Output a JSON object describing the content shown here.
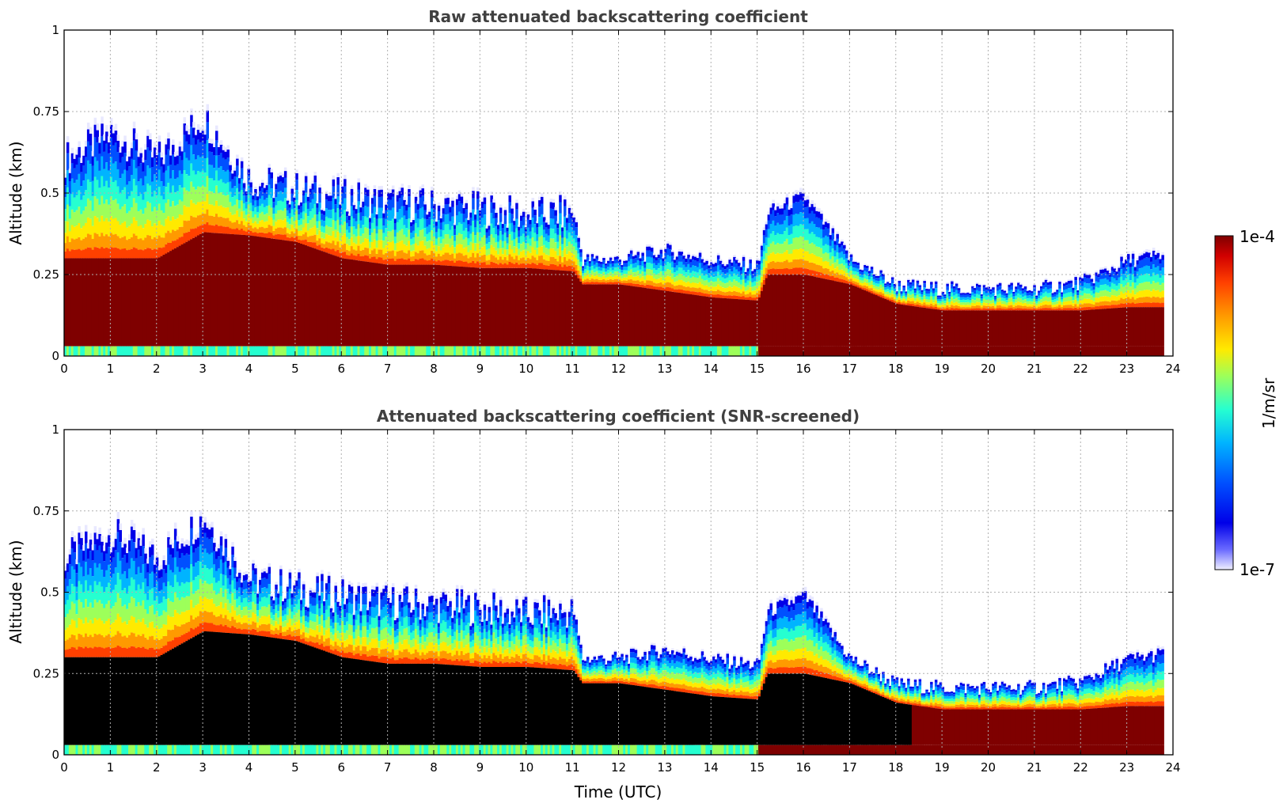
{
  "chart_data": [
    {
      "type": "heatmap",
      "title": "Raw attenuated backscattering coefficient",
      "xlabel": "",
      "ylabel": "Altitude (km)",
      "xlim": [
        0,
        24
      ],
      "ylim": [
        0,
        1
      ],
      "x_ticks": [
        "0",
        "1",
        "2",
        "3",
        "4",
        "5",
        "6",
        "7",
        "8",
        "9",
        "10",
        "11",
        "12",
        "13",
        "14",
        "15",
        "16",
        "17",
        "18",
        "19",
        "20",
        "21",
        "22",
        "23",
        "24"
      ],
      "y_ticks": [
        "0",
        "0.25",
        "0.5",
        "0.75",
        "1"
      ],
      "grid": true,
      "colormap": "jet (log scale)",
      "layer_profile": {
        "time_utc": [
          0,
          1,
          2,
          3,
          4,
          5,
          6,
          7,
          8,
          9,
          10,
          11,
          11.2,
          12,
          13,
          14,
          15,
          15.2,
          16,
          17,
          18,
          19,
          20,
          21,
          22,
          23,
          23.8
        ],
        "dense_layer_top_km": [
          0.3,
          0.3,
          0.3,
          0.38,
          0.37,
          0.35,
          0.3,
          0.28,
          0.28,
          0.27,
          0.27,
          0.26,
          0.22,
          0.22,
          0.2,
          0.18,
          0.17,
          0.25,
          0.25,
          0.22,
          0.16,
          0.14,
          0.14,
          0.14,
          0.14,
          0.15,
          0.15
        ],
        "signal_top_km": [
          0.62,
          0.7,
          0.62,
          0.75,
          0.55,
          0.52,
          0.5,
          0.48,
          0.47,
          0.46,
          0.44,
          0.45,
          0.3,
          0.3,
          0.33,
          0.3,
          0.28,
          0.45,
          0.5,
          0.3,
          0.22,
          0.21,
          0.21,
          0.21,
          0.23,
          0.3,
          0.32
        ]
      }
    },
    {
      "type": "heatmap",
      "title": "Attenuated backscattering coefficient (SNR-screened)",
      "xlabel": "Time (UTC)",
      "ylabel": "Altitude (km)",
      "xlim": [
        0,
        24
      ],
      "ylim": [
        0,
        1
      ],
      "x_ticks": [
        "0",
        "1",
        "2",
        "3",
        "4",
        "5",
        "6",
        "7",
        "8",
        "9",
        "10",
        "11",
        "12",
        "13",
        "14",
        "15",
        "16",
        "17",
        "18",
        "19",
        "20",
        "21",
        "22",
        "23",
        "24"
      ],
      "y_ticks": [
        "0",
        "0.25",
        "0.5",
        "0.75",
        "1"
      ],
      "grid": true,
      "colormap": "jet (log scale)",
      "screened_region_color": "#000000"
    }
  ],
  "colorbar": {
    "label": "1/m/sr",
    "max_label": "1e-4",
    "min_label": "1e-7",
    "colors": [
      "#7f0000",
      "#d10000",
      "#ff4000",
      "#ff9a00",
      "#ffea00",
      "#9dff5a",
      "#26ffd0",
      "#00b4ff",
      "#0050ff",
      "#0000e8",
      "#6a6aff",
      "#e8e8ff"
    ]
  }
}
